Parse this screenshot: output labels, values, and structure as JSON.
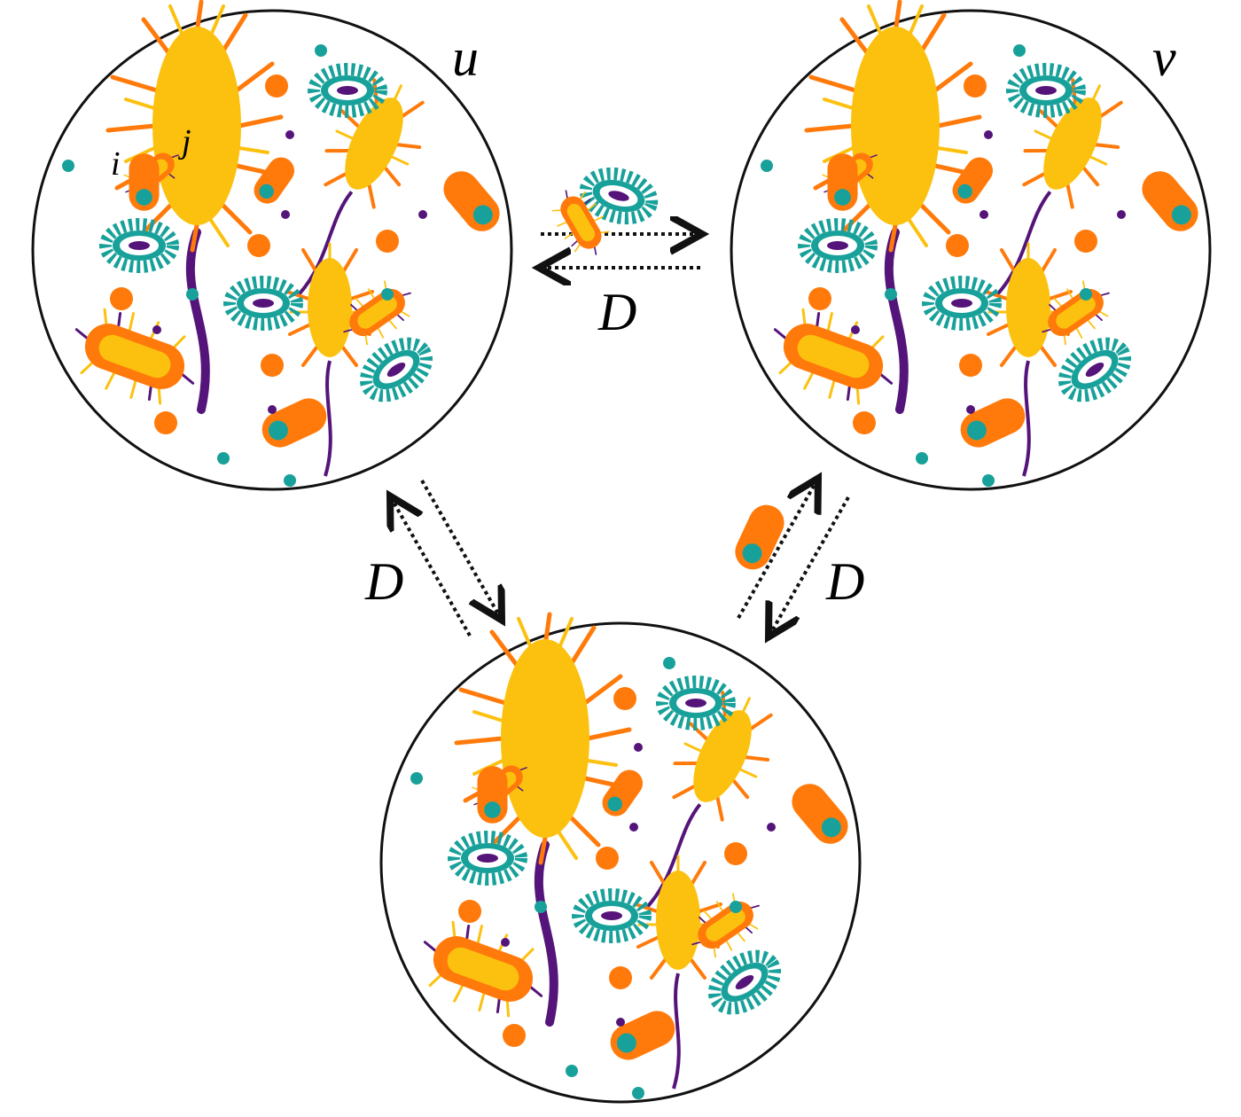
{
  "patch_labels": {
    "top_left": "u",
    "top_right": "v"
  },
  "species_labels": {
    "first": "i",
    "second": "j"
  },
  "dispersal_labels": {
    "top": "D",
    "left": "D",
    "right": "D"
  },
  "colors": {
    "yellow": "#FCC10F",
    "orange": "#FF7A0A",
    "teal": "#18A19A",
    "purple": "#55147A",
    "outline": "#111111"
  }
}
